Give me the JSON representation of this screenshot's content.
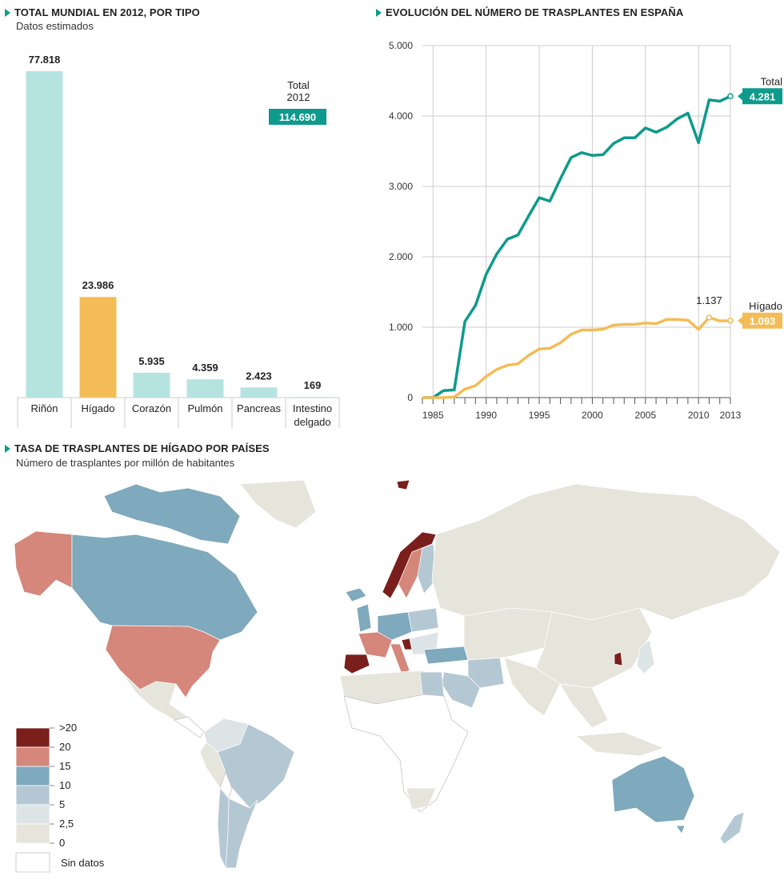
{
  "colors": {
    "teal": "#0e9a8c",
    "bar_light": "#b5e3e0",
    "bar_highlight": "#f4bc57",
    "orange_line": "#f4bc57",
    "grid": "#cccccc",
    "map_gt20": "#7a1f1b",
    "map_20": "#d4877a",
    "map_15": "#7fa9bd",
    "map_10": "#b4c8d4",
    "map_5": "#dde4e6",
    "map_2_5": "#e6e5dc",
    "map_nodata": "#ffffff",
    "map_border": "#bbbbbb"
  },
  "section1": {
    "title": "TOTAL MUNDIAL EN 2012, POR TIPO",
    "subtitle": "Datos estimados"
  },
  "section2": {
    "title": "EVOLUCIÓN DEL NÚMERO DE TRASPLANTES EN ESPAÑA"
  },
  "section3": {
    "title": "TASA DE TRASPLANTES DE HÍGADO POR PAÍSES",
    "subtitle": "Número de trasplantes por millón de habitantes"
  },
  "chart_data": [
    {
      "type": "bar",
      "title": "TOTAL MUNDIAL EN 2012, POR TIPO",
      "subtitle": "Datos estimados",
      "categories": [
        "Riñón",
        "Hígado",
        "Corazón",
        "Pulmón",
        "Pancreas",
        "Intestino delgado"
      ],
      "category_lines": [
        [
          "Riñón"
        ],
        [
          "Hígado"
        ],
        [
          "Corazón"
        ],
        [
          "Pulmón"
        ],
        [
          "Pancreas"
        ],
        [
          "Intestino",
          "delgado"
        ]
      ],
      "values": [
        77818,
        23986,
        5935,
        4359,
        2423,
        169
      ],
      "value_labels": [
        "77.818",
        "23.986",
        "5.935",
        "4.359",
        "2.423",
        "169"
      ],
      "highlight_index": 1,
      "total_label_lines": [
        "Total",
        "2012"
      ],
      "total_value": "114.690",
      "ylim": [
        0,
        77818
      ]
    },
    {
      "type": "line",
      "title": "EVOLUCIÓN DEL NÚMERO DE TRASPLANTES EN ESPAÑA",
      "xlim": [
        1984,
        2013
      ],
      "ylim": [
        0,
        5000
      ],
      "yticks": [
        0,
        1000,
        2000,
        3000,
        4000,
        5000
      ],
      "ytick_labels": [
        "0",
        "1.000",
        "2.000",
        "3.000",
        "4.000",
        "5.000"
      ],
      "xticks": [
        1985,
        1990,
        1995,
        2000,
        2005,
        2010,
        2013
      ],
      "xtick_labels": [
        "1985",
        "1990",
        "1995",
        "2000",
        "2005",
        "2010",
        "2013"
      ],
      "x": [
        1984,
        1985,
        1986,
        1987,
        1988,
        1989,
        1990,
        1991,
        1992,
        1993,
        1994,
        1995,
        1996,
        1997,
        1998,
        1999,
        2000,
        2001,
        2002,
        2003,
        2004,
        2005,
        2006,
        2007,
        2008,
        2009,
        2010,
        2011,
        2012,
        2013
      ],
      "series": [
        {
          "name": "Total",
          "end_label": "4.281",
          "values": [
            0,
            0,
            100,
            110,
            1080,
            1310,
            1750,
            2040,
            2250,
            2310,
            2580,
            2840,
            2790,
            3110,
            3410,
            3480,
            3440,
            3450,
            3610,
            3690,
            3690,
            3830,
            3770,
            3840,
            3960,
            4040,
            3620,
            4230,
            4210,
            4281
          ]
        },
        {
          "name": "Hígado",
          "end_label": "1.093",
          "values": [
            0,
            0,
            0,
            10,
            120,
            170,
            300,
            400,
            460,
            480,
            600,
            690,
            700,
            780,
            900,
            960,
            960,
            970,
            1030,
            1040,
            1040,
            1060,
            1050,
            1110,
            1110,
            1100,
            970,
            1137,
            1090,
            1093
          ]
        }
      ],
      "annotation": {
        "x": 2011,
        "text": "1.137"
      }
    }
  ],
  "map_legend": {
    "labels": [
      ">20",
      "20",
      "15",
      "10",
      "5",
      "2,5",
      "0"
    ],
    "nodata": "Sin datos"
  }
}
